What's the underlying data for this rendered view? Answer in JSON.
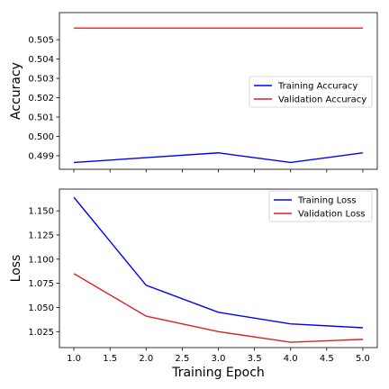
{
  "chart_data": [
    {
      "type": "line",
      "xlabel": "",
      "ylabel": "Accuracy",
      "x": [
        1.0,
        2.0,
        3.0,
        4.0,
        5.0
      ],
      "xlim": [
        0.8,
        5.2
      ],
      "ylim": [
        0.4983,
        0.5064
      ],
      "xticks": [
        "1.0",
        "1.5",
        "2.0",
        "2.5",
        "3.0",
        "3.5",
        "4.0",
        "4.5",
        "5.0"
      ],
      "yticks": [
        "0.499",
        "0.500",
        "0.501",
        "0.502",
        "0.503",
        "0.504",
        "0.505"
      ],
      "show_xtick_labels": false,
      "grid": false,
      "legend_position": "center-right",
      "series": [
        {
          "name": "Training Accuracy",
          "color": "#0000ff",
          "values": [
            0.49865,
            0.4989,
            0.49915,
            0.49865,
            0.49915
          ]
        },
        {
          "name": "Validation Accuracy",
          "color": "#dd2222",
          "values": [
            0.5056,
            0.5056,
            0.5056,
            0.5056,
            0.5056
          ]
        }
      ]
    },
    {
      "type": "line",
      "xlabel": "Training Epoch",
      "ylabel": "Loss",
      "x": [
        1.0,
        2.0,
        3.0,
        4.0,
        5.0
      ],
      "xlim": [
        0.8,
        5.2
      ],
      "ylim": [
        1.0085,
        1.1725
      ],
      "xticks": [
        "1.0",
        "1.5",
        "2.0",
        "2.5",
        "3.0",
        "3.5",
        "4.0",
        "4.5",
        "5.0"
      ],
      "yticks": [
        "1.025",
        "1.050",
        "1.075",
        "1.100",
        "1.125",
        "1.150"
      ],
      "show_xtick_labels": true,
      "grid": false,
      "legend_position": "top-right",
      "series": [
        {
          "name": "Training Loss",
          "color": "#0000ff",
          "values": [
            1.164,
            1.073,
            1.045,
            1.033,
            1.029
          ]
        },
        {
          "name": "Validation Loss",
          "color": "#dd2222",
          "values": [
            1.085,
            1.041,
            1.025,
            1.014,
            1.017
          ]
        }
      ]
    }
  ]
}
